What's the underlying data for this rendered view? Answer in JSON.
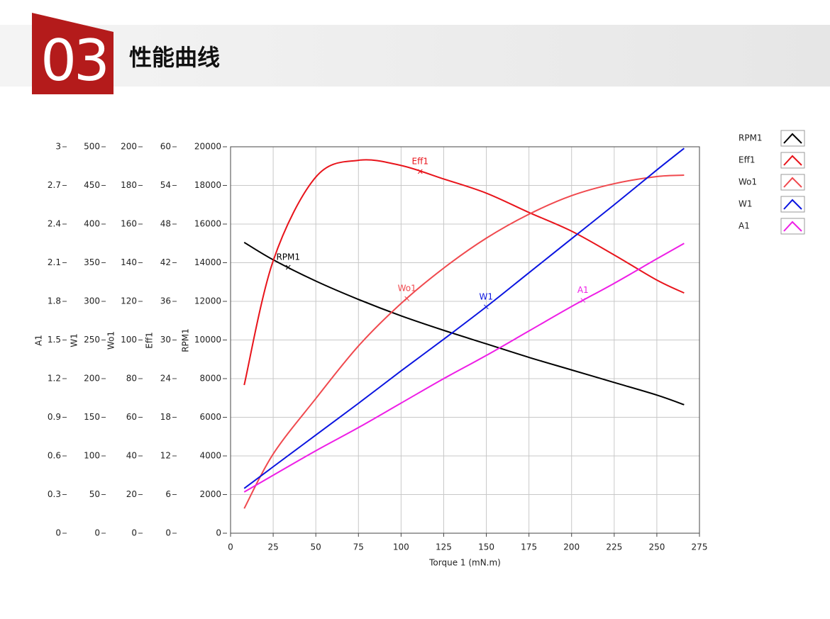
{
  "header": {
    "number": "03",
    "title": "性能曲线"
  },
  "chart_data": {
    "type": "line",
    "xlabel": "Torque 1 (mN.m)",
    "xlim": [
      0,
      275
    ],
    "xticks": [
      0,
      25,
      50,
      75,
      100,
      125,
      150,
      175,
      200,
      225,
      250,
      275
    ],
    "grid": true,
    "y_axes": [
      {
        "label": "A1",
        "ylim": [
          0,
          3
        ],
        "yticks": [
          0,
          0.3,
          0.6,
          0.9,
          1.2,
          1.5,
          1.8,
          2.1,
          2.4,
          2.7,
          3
        ]
      },
      {
        "label": "W1",
        "ylim": [
          0,
          500
        ],
        "yticks": [
          0,
          50,
          100,
          150,
          200,
          250,
          300,
          350,
          400,
          450,
          500
        ]
      },
      {
        "label": "Wo1",
        "ylim": [
          0,
          200
        ],
        "yticks": [
          0,
          20,
          40,
          60,
          80,
          100,
          120,
          140,
          160,
          180,
          200
        ]
      },
      {
        "label": "Eff1",
        "ylim": [
          0,
          60
        ],
        "yticks": [
          0,
          6,
          12,
          18,
          24,
          30,
          36,
          42,
          48,
          54,
          60
        ]
      },
      {
        "label": "RPM1",
        "ylim": [
          0,
          20000
        ],
        "yticks": [
          0,
          2000,
          4000,
          6000,
          8000,
          10000,
          12000,
          14000,
          16000,
          18000,
          20000
        ]
      }
    ],
    "x": [
      8,
      25,
      50,
      75,
      100,
      125,
      150,
      175,
      200,
      225,
      250,
      266
    ],
    "series": [
      {
        "name": "RPM1",
        "color": "#000000",
        "axis": 4,
        "values": [
          15050,
          14150,
          13050,
          12100,
          11250,
          10500,
          9800,
          9100,
          8450,
          7800,
          7150,
          6650
        ]
      },
      {
        "name": "Eff1",
        "color": "#e8141b",
        "axis": 3,
        "values": [
          23,
          42.3,
          55.3,
          57.9,
          57.1,
          55,
          52.8,
          49.8,
          46.9,
          43.2,
          39.3,
          37.3
        ]
      },
      {
        "name": "Wo1",
        "color": "#f0494e",
        "axis": 2,
        "values": [
          12.8,
          41,
          69.7,
          96.9,
          118.9,
          137.2,
          152.7,
          165.1,
          174.7,
          180.9,
          184.6,
          185.3
        ]
      },
      {
        "name": "W1",
        "color": "#0a14e0",
        "axis": 1,
        "values": [
          58,
          86,
          127,
          168,
          210,
          251,
          293,
          337,
          381,
          425,
          470,
          498
        ]
      },
      {
        "name": "A1",
        "color": "#ee1ee6",
        "axis": 0,
        "values": [
          0.32,
          0.45,
          0.64,
          0.82,
          1.01,
          1.2,
          1.38,
          1.57,
          1.76,
          1.94,
          2.13,
          2.25
        ]
      }
    ]
  }
}
